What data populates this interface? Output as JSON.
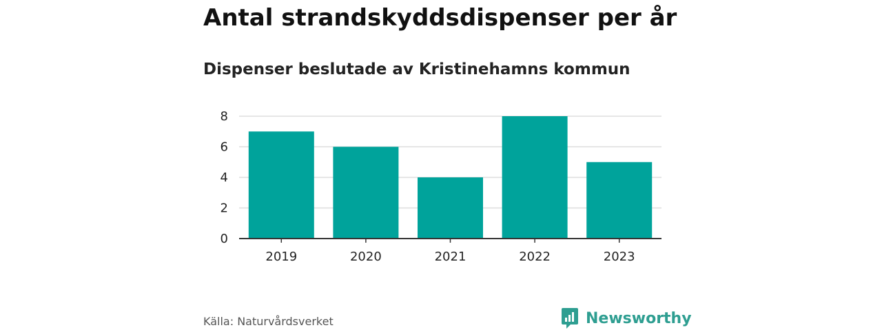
{
  "chart_data": {
    "type": "bar",
    "title": "Antal strandskyddsdispenser per år",
    "subtitle": "Dispenser beslutade av Kristinehamns kommun",
    "categories": [
      "2019",
      "2020",
      "2021",
      "2022",
      "2023"
    ],
    "values": [
      7,
      6,
      4,
      8,
      5
    ],
    "yticks": [
      0,
      2,
      4,
      6,
      8
    ],
    "ylim": [
      0,
      8
    ],
    "xlabel": "",
    "ylabel": "",
    "grid": true,
    "bar_color": "#00a39b",
    "source": "Källa: Naturvårdsverket"
  },
  "brand": {
    "name": "Newsworthy",
    "icon": "newsworthy-logo-icon",
    "color": "#2e9e91"
  }
}
